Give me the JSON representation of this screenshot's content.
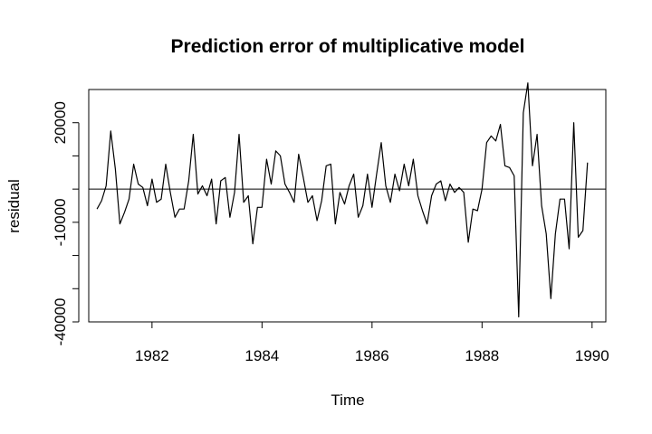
{
  "chart_data": {
    "type": "line",
    "title": "Prediction error of multiplicative model",
    "xlabel": "Time",
    "ylabel": "residual",
    "xlim": [
      1980.85,
      1990.25
    ],
    "ylim": [
      -40000,
      30000
    ],
    "x_ticks": [
      1982,
      1984,
      1986,
      1988,
      1990
    ],
    "x_tick_labels": [
      "1982",
      "1984",
      "1986",
      "1988",
      "1990"
    ],
    "y_ticks": [
      -40000,
      -10000,
      20000
    ],
    "y_tick_labels": [
      "-40000",
      "-10000",
      "20000"
    ],
    "y_minor_ticks": [
      -30000,
      -20000,
      0,
      10000
    ],
    "reference_line": 0,
    "grid": false,
    "legend": "none",
    "series": [
      {
        "start": 1981.0,
        "step": 0.08333333,
        "values": [
          -6000,
          -3500,
          1000,
          17500,
          6000,
          -10500,
          -7000,
          -3000,
          7500,
          1500,
          500,
          -5000,
          3000,
          -4000,
          -3000,
          7500,
          -1000,
          -8500,
          -6000,
          -6000,
          2500,
          16500,
          -1500,
          1000,
          -2000,
          3000,
          -10500,
          2500,
          3500,
          -8500,
          -1000,
          16500,
          -4000,
          -2000,
          -16500,
          -5500,
          -5500,
          9000,
          1500,
          11500,
          10000,
          1500,
          -1000,
          -4000,
          10500,
          3500,
          -4000,
          -2000,
          -9500,
          -3500,
          7000,
          7500,
          -10500,
          -1000,
          -4500,
          1000,
          4500,
          -8500,
          -5000,
          4500,
          -5500,
          4500,
          14000,
          1000,
          -4000,
          4500,
          -500,
          7500,
          1000,
          9000,
          -2000,
          -6500,
          -10500,
          -2000,
          1500,
          2500,
          -3500,
          1500,
          -1000,
          500,
          -1000,
          -16000,
          -6000,
          -6500,
          0,
          14000,
          16000,
          14500,
          19500,
          7000,
          6500,
          4000,
          -38500,
          23000,
          32000,
          7000,
          16500,
          -5000,
          -13500,
          -33000,
          -13500,
          -3000,
          -3000,
          -18000,
          20000,
          -14500,
          -12500,
          8000
        ]
      }
    ]
  }
}
